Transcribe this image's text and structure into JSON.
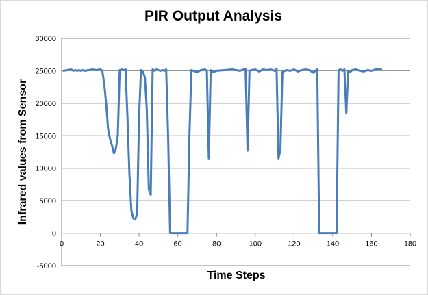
{
  "chart_data": {
    "type": "line",
    "title": "PIR Output Analysis",
    "xlabel": "Time Steps",
    "ylabel": "Infrared values from Sensor",
    "xlim": [
      0,
      180
    ],
    "ylim": [
      -5000,
      30000
    ],
    "x_ticks": [
      0,
      20,
      40,
      60,
      80,
      100,
      120,
      140,
      160,
      180
    ],
    "y_ticks": [
      -5000,
      0,
      5000,
      10000,
      15000,
      20000,
      25000,
      30000
    ],
    "y_tick_labels": [
      "-5000",
      "0",
      "5000",
      "10000",
      "15000",
      "20000",
      "25000",
      "30000"
    ],
    "grid": "horizontal",
    "legend": "none",
    "line_color": "#4a7ebb",
    "series": [
      {
        "x": [
          1,
          3,
          5,
          6,
          7,
          8,
          9,
          10,
          11,
          12,
          14,
          16,
          18,
          20,
          21,
          22,
          23,
          24,
          25,
          26,
          27,
          28,
          29,
          30,
          31,
          32,
          33,
          34,
          35,
          36,
          37,
          38,
          39,
          40,
          41,
          42,
          43,
          44,
          45,
          46,
          47,
          48,
          49,
          50,
          51,
          52,
          53,
          54,
          55,
          56,
          57,
          58,
          60,
          62,
          64,
          65,
          66,
          67,
          68,
          70,
          72,
          74,
          75,
          76,
          77,
          78,
          80,
          84,
          88,
          92,
          95,
          96,
          97,
          98,
          100,
          102,
          104,
          106,
          108,
          110,
          111,
          112,
          113,
          114,
          116,
          118,
          120,
          122,
          124,
          126,
          128,
          130,
          131,
          132,
          133,
          134,
          136,
          138,
          140,
          142,
          143,
          144,
          145,
          146,
          147,
          148,
          149,
          150,
          152,
          154,
          156,
          158,
          160,
          162,
          165
        ],
        "y": [
          25000,
          25100,
          25200,
          25000,
          25100,
          25000,
          25100,
          25000,
          25100,
          25000,
          25100,
          25200,
          25100,
          25200,
          25000,
          23000,
          20000,
          16000,
          14500,
          13500,
          12300,
          13000,
          15000,
          25100,
          25200,
          25100,
          25200,
          18000,
          9000,
          3500,
          2300,
          2100,
          3000,
          18000,
          25100,
          24800,
          24000,
          19000,
          6800,
          5900,
          25200,
          25000,
          25200,
          25100,
          25000,
          25100,
          25000,
          25200,
          15000,
          0,
          0,
          0,
          0,
          0,
          0,
          0,
          15000,
          25100,
          25000,
          24800,
          25100,
          25200,
          25000,
          11400,
          25100,
          24800,
          25000,
          25100,
          25200,
          25000,
          25300,
          12700,
          25000,
          25100,
          25200,
          24900,
          25200,
          25100,
          25200,
          25000,
          25300,
          11400,
          13000,
          24800,
          25100,
          25000,
          25200,
          24900,
          25100,
          25200,
          25100,
          24700,
          25000,
          25200,
          0,
          0,
          0,
          0,
          0,
          0,
          25100,
          25200,
          25000,
          25200,
          18500,
          25000,
          24800,
          25100,
          25200,
          25000,
          24900,
          25100,
          25000,
          25200,
          25200
        ]
      }
    ]
  }
}
